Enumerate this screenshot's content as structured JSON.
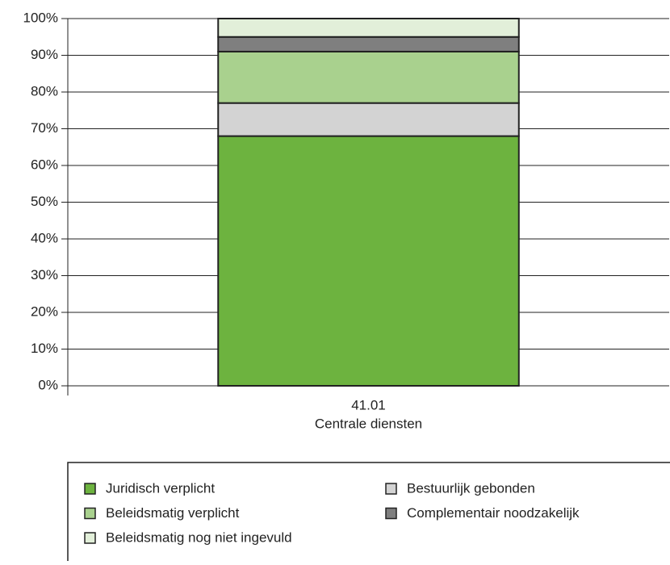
{
  "chart_data": {
    "type": "stacked_bar",
    "categories": [
      [
        "41.01",
        "Centrale diensten"
      ]
    ],
    "series": [
      {
        "name": "Juridisch verplicht",
        "color": "#6db33f",
        "values": [
          68
        ]
      },
      {
        "name": "Bestuurlijk gebonden",
        "color": "#d3d3d3",
        "values": [
          9
        ]
      },
      {
        "name": "Beleidsmatig verplicht",
        "color": "#a9d18e",
        "values": [
          14
        ]
      },
      {
        "name": "Complementair noodzakelijk",
        "color": "#7f7f7f",
        "values": [
          4
        ]
      },
      {
        "name": "Beleidsmatig nog niet ingevuld",
        "color": "#e2efd9",
        "values": [
          5
        ]
      }
    ],
    "ylim": [
      0,
      100
    ],
    "yticks": [
      {
        "value": 0,
        "label": "0%"
      },
      {
        "value": 10,
        "label": "10%"
      },
      {
        "value": 20,
        "label": "20%"
      },
      {
        "value": 30,
        "label": "30%"
      },
      {
        "value": 40,
        "label": "40%"
      },
      {
        "value": 50,
        "label": "50%"
      },
      {
        "value": 60,
        "label": "60%"
      },
      {
        "value": 70,
        "label": "70%"
      },
      {
        "value": 80,
        "label": "80%"
      },
      {
        "value": 90,
        "label": "90%"
      },
      {
        "value": 100,
        "label": "100%"
      }
    ],
    "grid": true,
    "legend": "bottom"
  }
}
